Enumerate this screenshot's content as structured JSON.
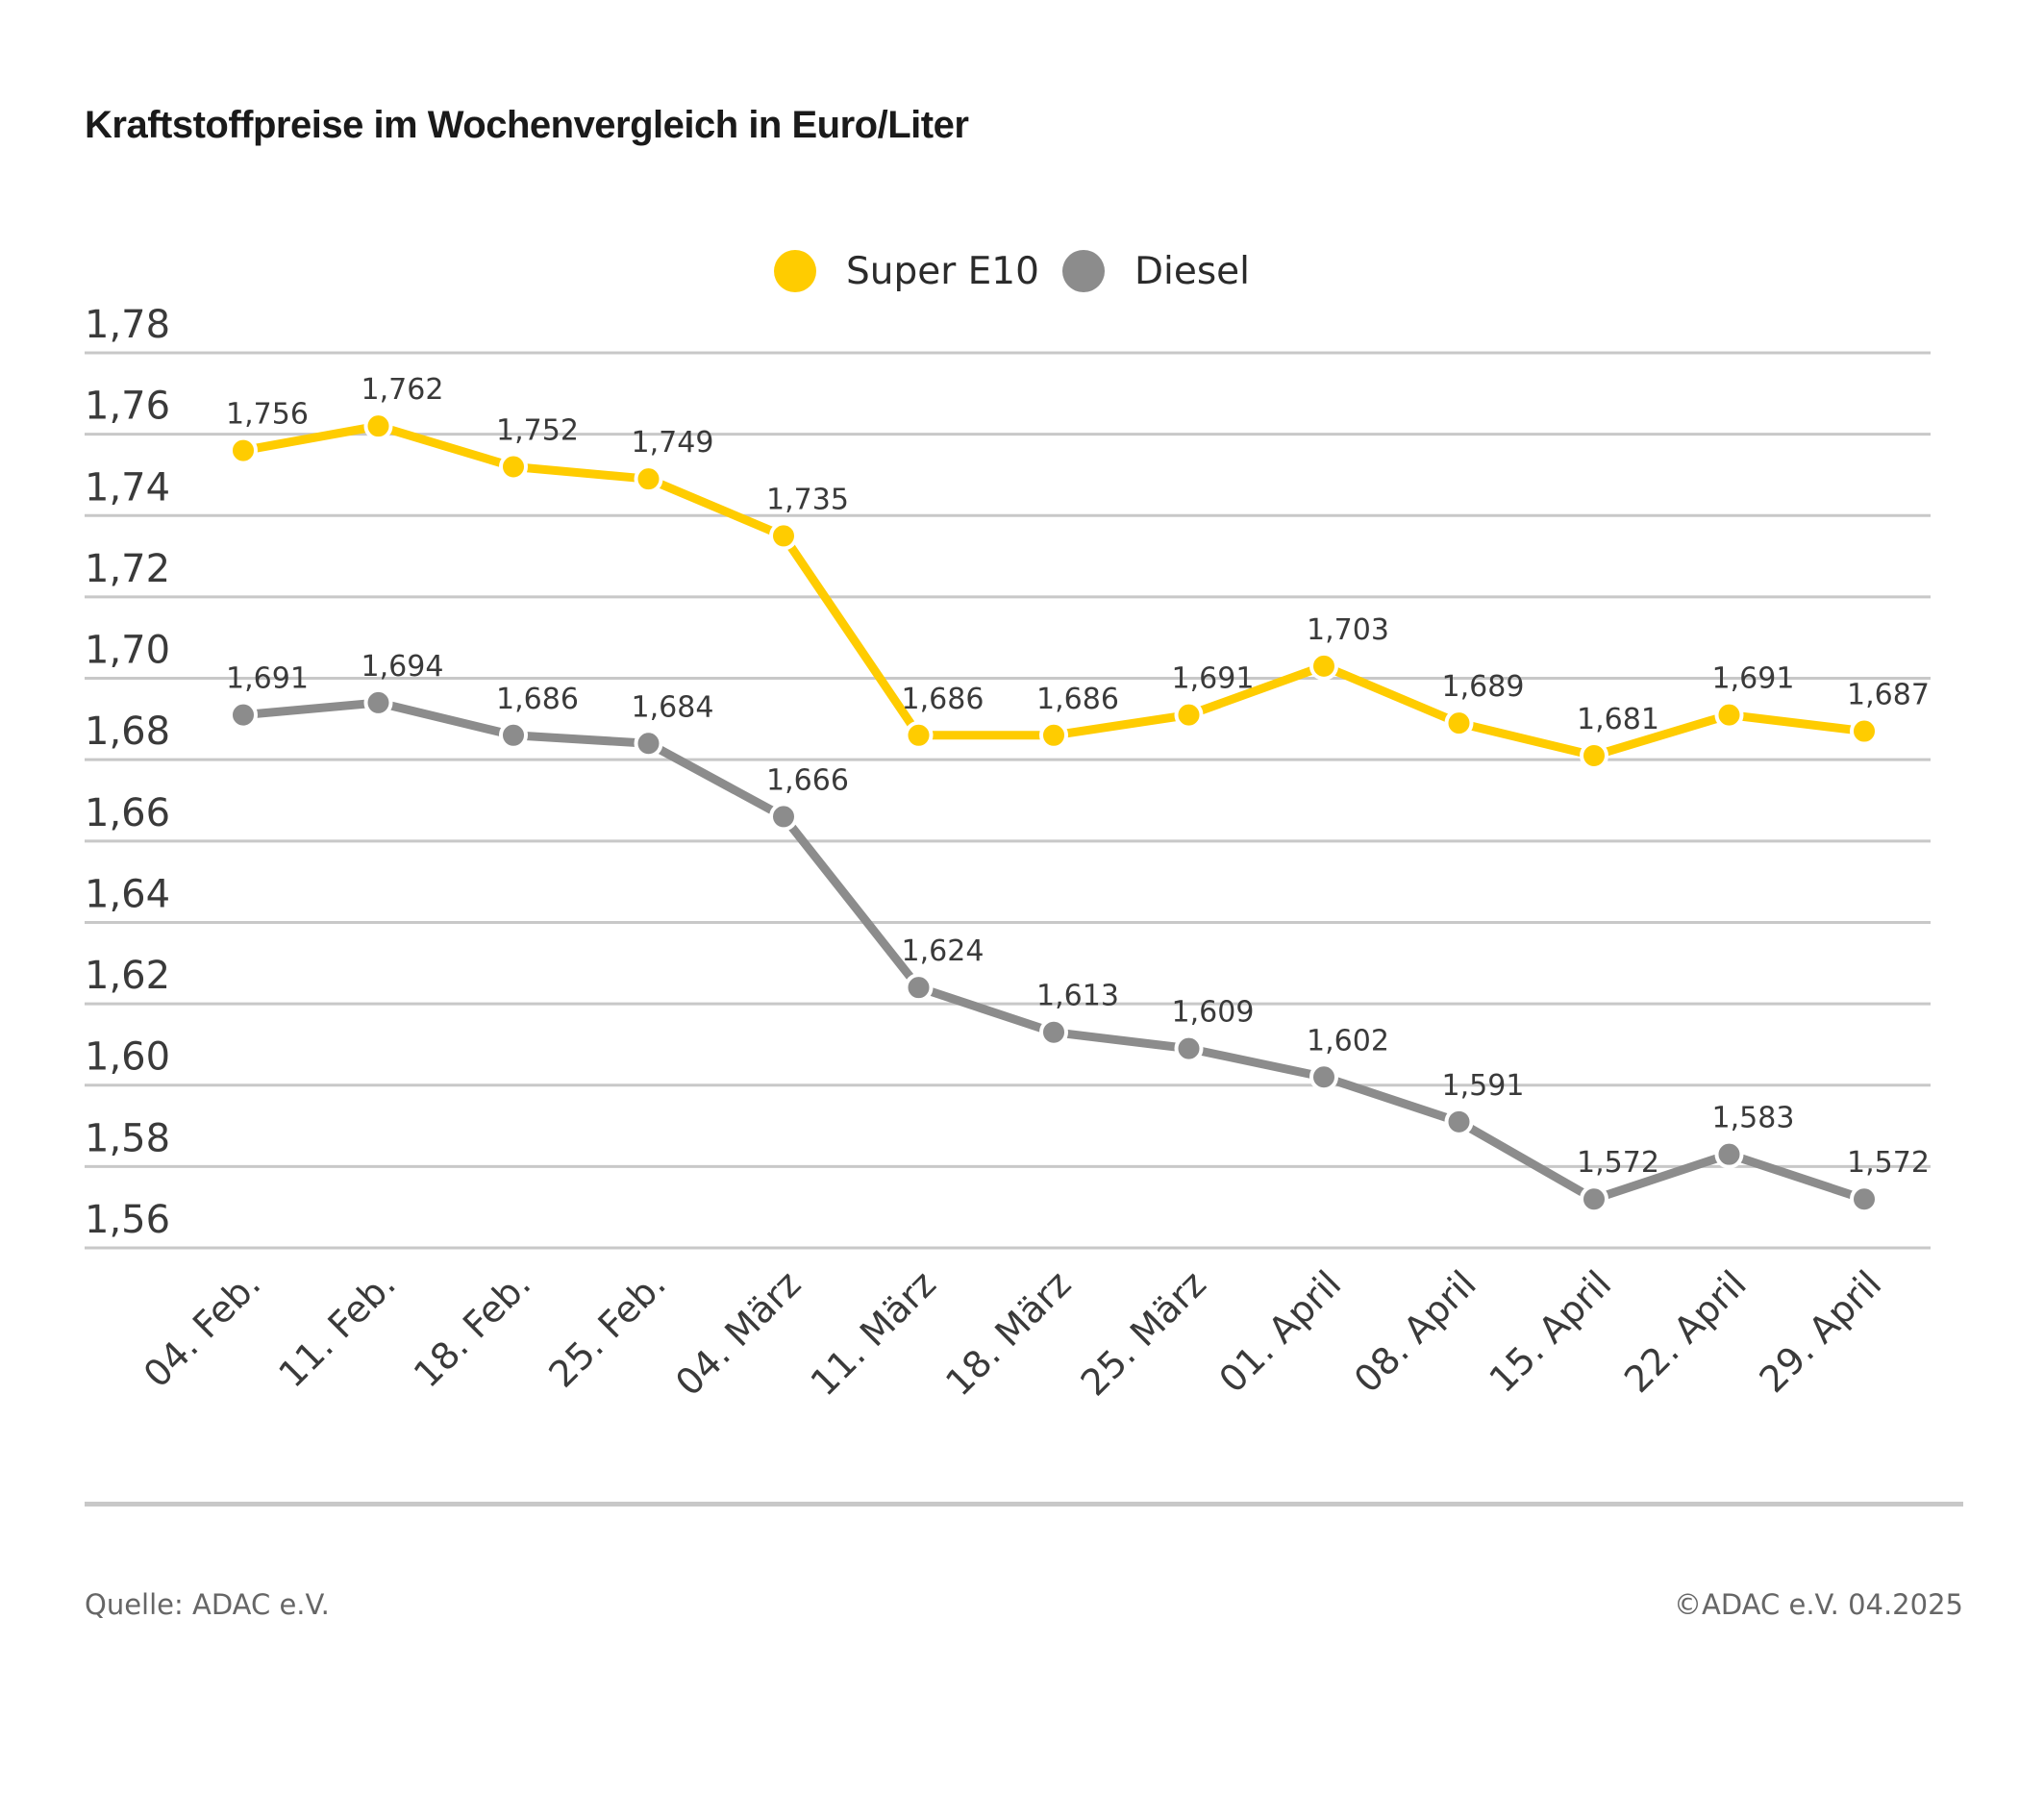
{
  "title": "Kraftstoffpreise im Wochenvergleich in Euro/Liter",
  "source": "Quelle: ADAC e.V.",
  "copyright": "©ADAC e.V. 04.2025",
  "colors": {
    "super_e10": "#ffcc00",
    "diesel": "#8c8c8c",
    "grid": "#c8c8c8",
    "text": "#333333"
  },
  "chart_data": {
    "type": "line",
    "title": "Kraftstoffpreise im Wochenvergleich in Euro/Liter",
    "xlabel": "",
    "ylabel": "",
    "x": [
      "04. Feb.",
      "11. Feb.",
      "18. Feb.",
      "25. Feb.",
      "04. März",
      "11. März",
      "18. März",
      "25. März",
      "01. April",
      "08. April",
      "15. April",
      "22. April",
      "29. April"
    ],
    "ylim": [
      1.56,
      1.78
    ],
    "yticks": [
      1.78,
      1.76,
      1.74,
      1.72,
      1.7,
      1.68,
      1.66,
      1.64,
      1.62,
      1.6,
      1.58,
      1.56
    ],
    "ytick_labels": [
      "1,78",
      "1,76",
      "1,74",
      "1,72",
      "1,70",
      "1,68",
      "1,66",
      "1,64",
      "1,62",
      "1,60",
      "1,58",
      "1,56"
    ],
    "grid": true,
    "legend": "top-center",
    "series": [
      {
        "name": "Super E10",
        "color": "#ffcc00",
        "values": [
          1.756,
          1.762,
          1.752,
          1.749,
          1.735,
          1.686,
          1.686,
          1.691,
          1.703,
          1.689,
          1.681,
          1.691,
          1.687
        ],
        "labels": [
          "1,756",
          "1,762",
          "1,752",
          "1,749",
          "1,735",
          "1,686",
          "1,686",
          "1,691",
          "1,703",
          "1,689",
          "1,681",
          "1,691",
          "1,687"
        ]
      },
      {
        "name": "Diesel",
        "color": "#8c8c8c",
        "values": [
          1.691,
          1.694,
          1.686,
          1.684,
          1.666,
          1.624,
          1.613,
          1.609,
          1.602,
          1.591,
          1.572,
          1.583,
          1.572
        ],
        "labels": [
          "1,691",
          "1,694",
          "1,686",
          "1,684",
          "1,666",
          "1,624",
          "1,613",
          "1,609",
          "1,602",
          "1,591",
          "1,572",
          "1,583",
          "1,572"
        ]
      }
    ]
  }
}
